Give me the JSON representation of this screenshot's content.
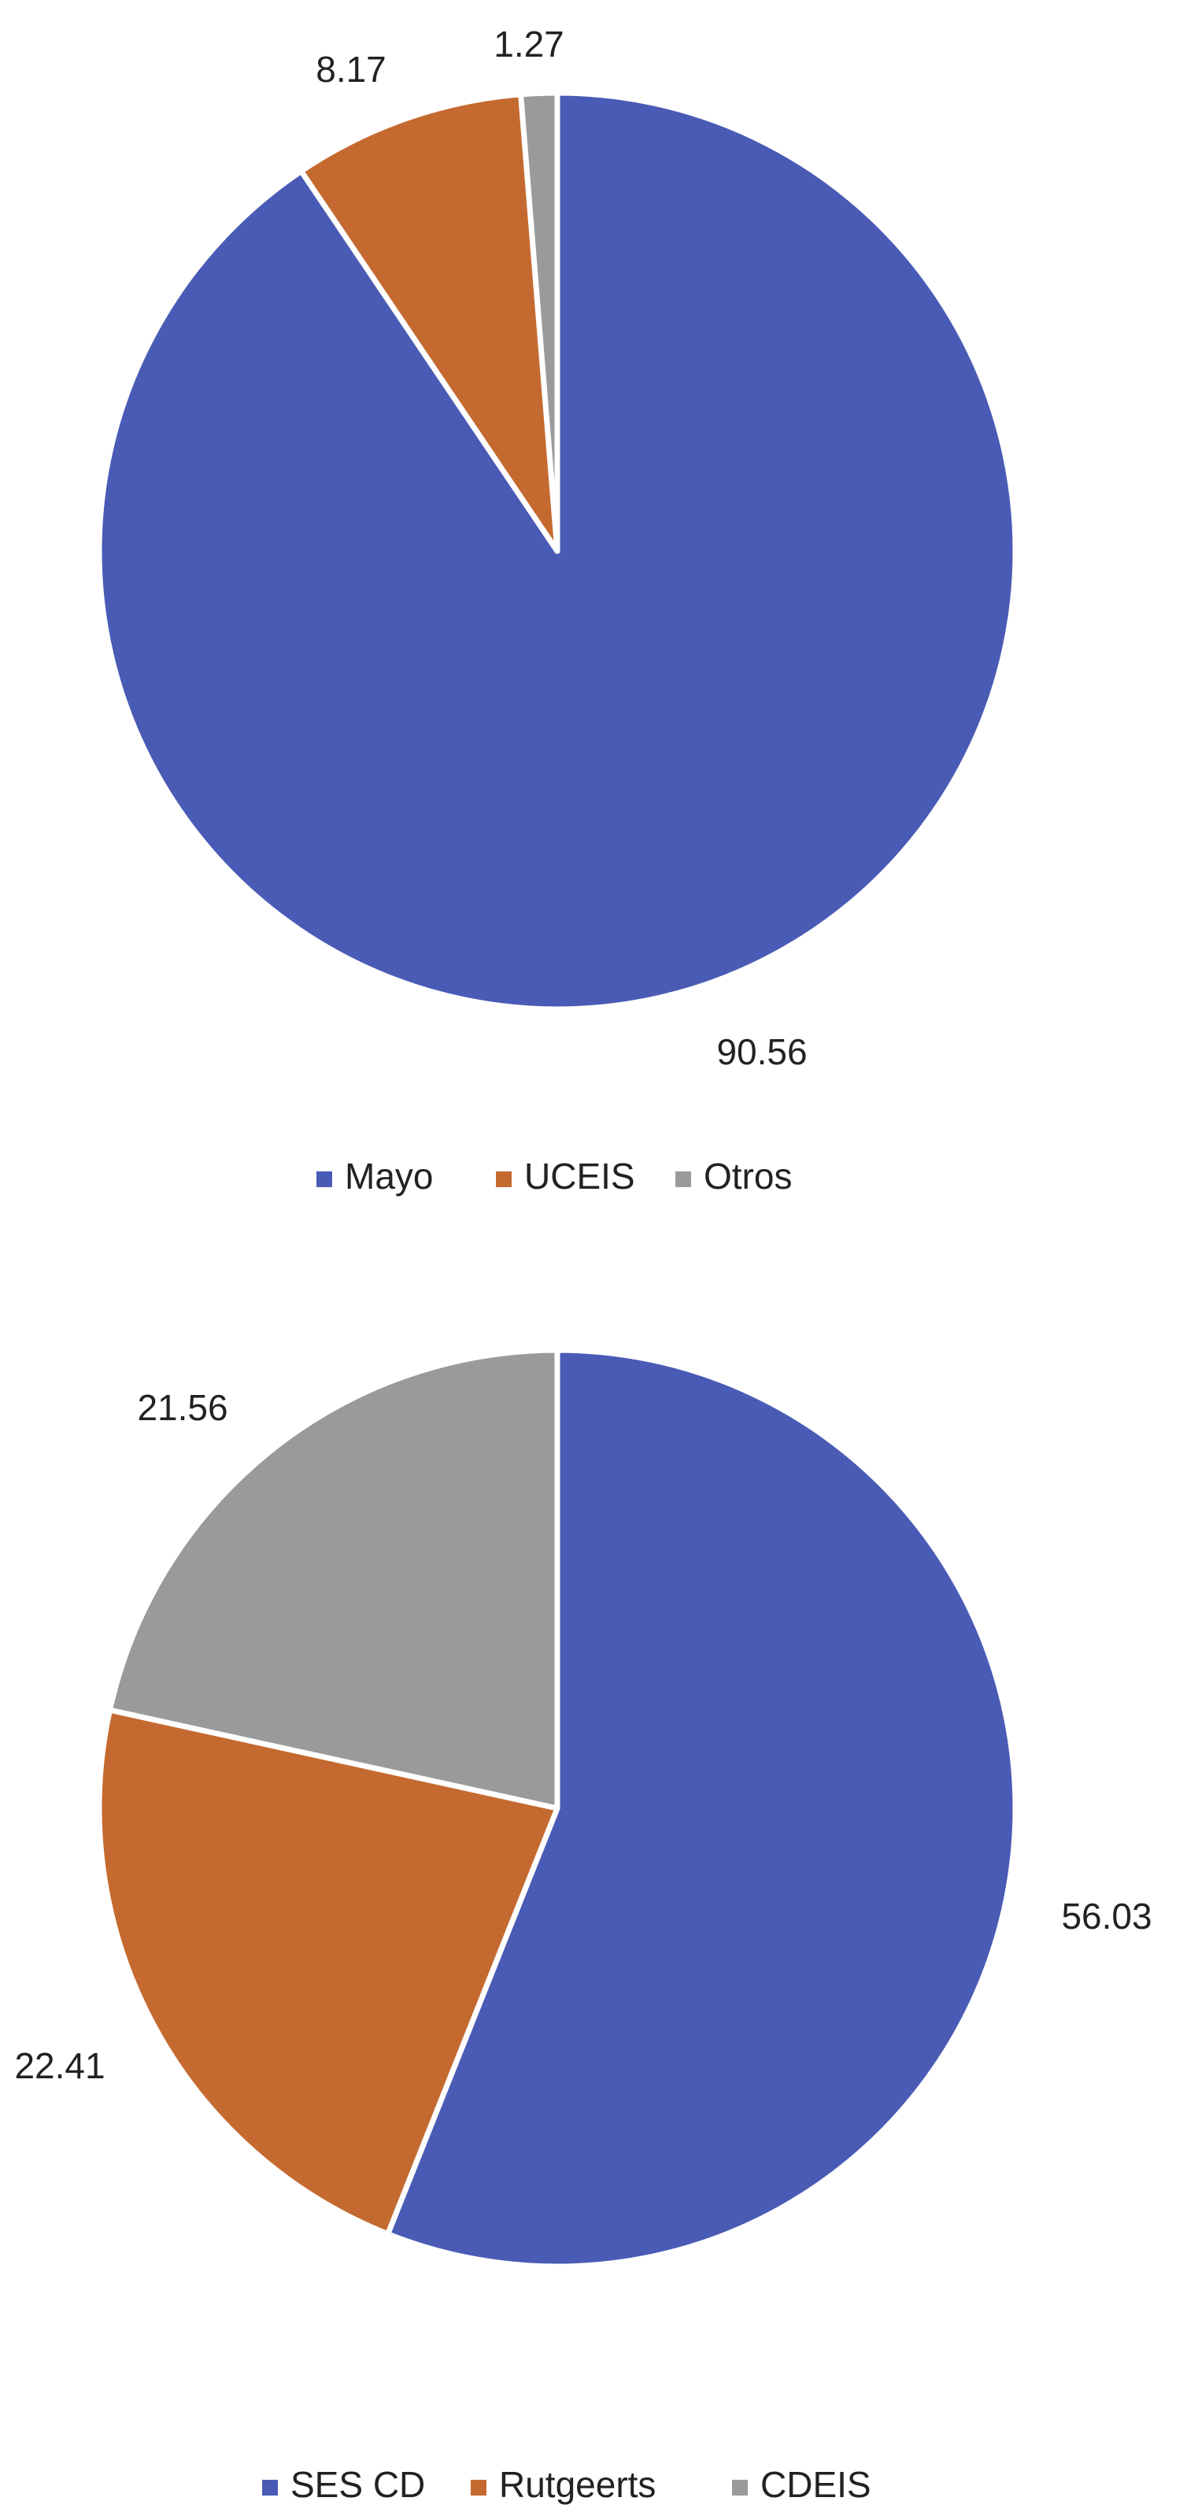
{
  "chart_data": [
    {
      "type": "pie",
      "categories": [
        "Mayo",
        "UCEIS",
        "Otros"
      ],
      "values": [
        90.56,
        8.17,
        1.27
      ],
      "data_labels": [
        "90.56",
        "8.17",
        "1.27"
      ],
      "colors": [
        "#4A5BB5",
        "#C46A30",
        "#9A9A9A"
      ],
      "legend": {
        "entries": [
          "Mayo",
          "UCEIS",
          "Otros"
        ],
        "position": "bottom"
      },
      "start": "12 o'clock",
      "direction": "clockwise"
    },
    {
      "type": "pie",
      "categories": [
        "SES CD",
        "Rutgeerts",
        "CDEIS"
      ],
      "values": [
        56.03,
        22.41,
        21.56
      ],
      "data_labels": [
        "56.03",
        "22.41",
        "21.56"
      ],
      "colors": [
        "#4A5BB5",
        "#C46A30",
        "#9A9A9A"
      ],
      "legend": {
        "entries": [
          "SES CD",
          "Rutgeerts",
          "CDEIS"
        ],
        "position": "bottom"
      },
      "start": "12 o'clock",
      "direction": "clockwise"
    }
  ]
}
